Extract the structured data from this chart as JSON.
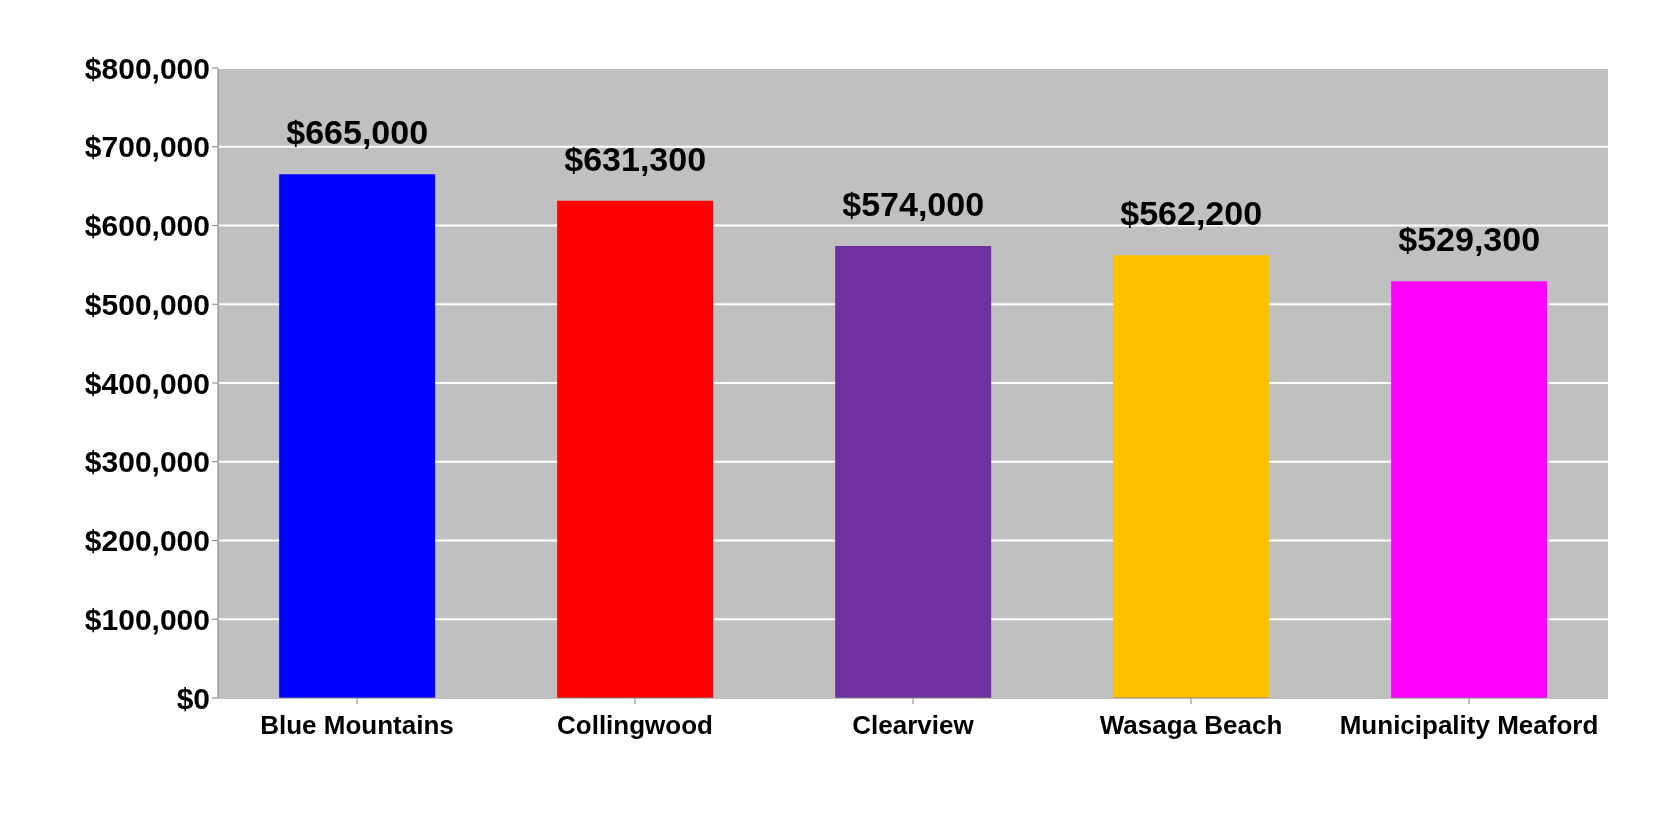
{
  "chart_data": {
    "type": "bar",
    "categories": [
      "Blue Mountains",
      "Collingwood",
      "Clearview",
      "Wasaga Beach",
      "Municipality Meaford"
    ],
    "values": [
      665000,
      631300,
      574000,
      562200,
      529300
    ],
    "colors": [
      "#0000ff",
      "#ff0000",
      "#7030a0",
      "#ffc000",
      "#ff00ff"
    ],
    "value_labels": [
      "$665,000",
      "$631,300",
      "$574,000",
      "$562,200",
      "$529,300"
    ],
    "ylim": [
      0,
      800000
    ],
    "yticks": [
      {
        "value": 0,
        "label": "$0"
      },
      {
        "value": 100000,
        "label": "$100,000"
      },
      {
        "value": 200000,
        "label": "$200,000"
      },
      {
        "value": 300000,
        "label": "$300,000"
      },
      {
        "value": 400000,
        "label": "$400,000"
      },
      {
        "value": 500000,
        "label": "$500,000"
      },
      {
        "value": 600000,
        "label": "$600,000"
      },
      {
        "value": 700000,
        "label": "$700,000"
      },
      {
        "value": 800000,
        "label": "$800,000"
      }
    ],
    "grid": "y"
  }
}
